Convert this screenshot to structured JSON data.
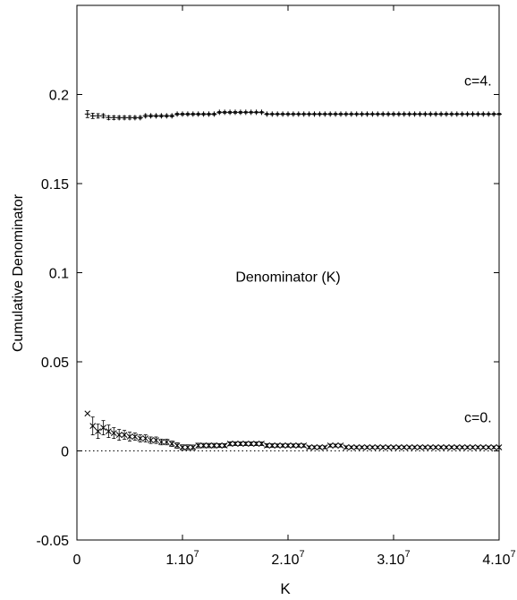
{
  "chart_data": {
    "type": "scatter",
    "title": "Denominator (K)",
    "xlabel": "K",
    "ylabel": "Cumulative Denominator",
    "xlim": [
      0,
      40000000
    ],
    "ylim": [
      -0.05,
      0.25
    ],
    "x_ticks": [
      {
        "value": 0,
        "base": "0",
        "exp": ""
      },
      {
        "value": 10000000,
        "base": "1.10",
        "exp": "7"
      },
      {
        "value": 20000000,
        "base": "2.10",
        "exp": "7"
      },
      {
        "value": 30000000,
        "base": "3.10",
        "exp": "7"
      },
      {
        "value": 40000000,
        "base": "4.10",
        "exp": "7"
      }
    ],
    "y_ticks": [
      {
        "value": -0.05,
        "label": "-0.05"
      },
      {
        "value": 0,
        "label": "0"
      },
      {
        "value": 0.05,
        "label": "0.05"
      },
      {
        "value": 0.1,
        "label": "0.1"
      },
      {
        "value": 0.15,
        "label": "0.15"
      },
      {
        "value": 0.2,
        "label": "0.2"
      }
    ],
    "reference_line": {
      "y": 0,
      "style": "dotted"
    },
    "grid": false,
    "series": [
      {
        "name": "c=4.",
        "marker": "+",
        "x": [
          1000000,
          1500000,
          2000000,
          2500000,
          3000000,
          3500000,
          4000000,
          4500000,
          5000000,
          5500000,
          6000000,
          6500000,
          7000000,
          7500000,
          8000000,
          8500000,
          9000000,
          9500000,
          10000000,
          10500000,
          11000000,
          11500000,
          12000000,
          12500000,
          13000000,
          13500000,
          14000000,
          14500000,
          15000000,
          15500000,
          16000000,
          16500000,
          17000000,
          17500000,
          18000000,
          18500000,
          19000000,
          19500000,
          20000000,
          20500000,
          21000000,
          21500000,
          22000000,
          22500000,
          23000000,
          23500000,
          24000000,
          24500000,
          25000000,
          25500000,
          26000000,
          26500000,
          27000000,
          27500000,
          28000000,
          28500000,
          29000000,
          29500000,
          30000000,
          30500000,
          31000000,
          31500000,
          32000000,
          32500000,
          33000000,
          33500000,
          34000000,
          34500000,
          35000000,
          35500000,
          36000000,
          36500000,
          37000000,
          37500000,
          38000000,
          38500000,
          39000000,
          39500000,
          40000000
        ],
        "y": [
          0.189,
          0.188,
          0.188,
          0.188,
          0.187,
          0.187,
          0.187,
          0.187,
          0.187,
          0.187,
          0.187,
          0.188,
          0.188,
          0.188,
          0.188,
          0.188,
          0.188,
          0.189,
          0.189,
          0.189,
          0.189,
          0.189,
          0.189,
          0.189,
          0.189,
          0.19,
          0.19,
          0.19,
          0.19,
          0.19,
          0.19,
          0.19,
          0.19,
          0.19,
          0.189,
          0.189,
          0.189,
          0.189,
          0.189,
          0.189,
          0.189,
          0.189,
          0.189,
          0.189,
          0.189,
          0.189,
          0.189,
          0.189,
          0.189,
          0.189,
          0.189,
          0.189,
          0.189,
          0.189,
          0.189,
          0.189,
          0.189,
          0.189,
          0.189,
          0.189,
          0.189,
          0.189,
          0.189,
          0.189,
          0.189,
          0.189,
          0.189,
          0.189,
          0.189,
          0.189,
          0.189,
          0.189,
          0.189,
          0.189,
          0.189,
          0.189,
          0.189,
          0.189,
          0.189
        ],
        "err": [
          0.002,
          0.0015,
          0.0012,
          0.001,
          0.001,
          0.001,
          0.0008,
          0.0008,
          0.0008,
          0.0007,
          0.0007,
          0.0007,
          0.0006,
          0.0006,
          0.0006,
          0.0006,
          0.0006,
          0.0005,
          0.0005,
          0.0005,
          0.0005,
          0.0005,
          0.0005,
          0.0005,
          0.0005,
          0.0005,
          0.0005,
          0.0005,
          0.0005,
          0.0005,
          0.0004,
          0.0004,
          0.0004,
          0.0004,
          0.0004,
          0.0004,
          0.0004,
          0.0004,
          0.0004,
          0.0004,
          0.0004,
          0.0004,
          0.0004,
          0.0004,
          0.0004,
          0.0004,
          0.0004,
          0.0004,
          0.0004,
          0.0004,
          0.0004,
          0.0004,
          0.0004,
          0.0004,
          0.0004,
          0.0004,
          0.0004,
          0.0004,
          0.0004,
          0.0004,
          0.0004,
          0.0004,
          0.0004,
          0.0004,
          0.0004,
          0.0004,
          0.0004,
          0.0004,
          0.0004,
          0.0004,
          0.0004,
          0.0004,
          0.0004,
          0.0004,
          0.0004,
          0.0004,
          0.0004,
          0.0004,
          0.0004
        ]
      },
      {
        "name": "c=0.",
        "marker": "x",
        "x": [
          1000000,
          1500000,
          2000000,
          2500000,
          3000000,
          3500000,
          4000000,
          4500000,
          5000000,
          5500000,
          6000000,
          6500000,
          7000000,
          7500000,
          8000000,
          8500000,
          9000000,
          9500000,
          10000000,
          10500000,
          11000000,
          11500000,
          12000000,
          12500000,
          13000000,
          13500000,
          14000000,
          14500000,
          15000000,
          15500000,
          16000000,
          16500000,
          17000000,
          17500000,
          18000000,
          18500000,
          19000000,
          19500000,
          20000000,
          20500000,
          21000000,
          21500000,
          22000000,
          22500000,
          23000000,
          23500000,
          24000000,
          24500000,
          25000000,
          25500000,
          26000000,
          26500000,
          27000000,
          27500000,
          28000000,
          28500000,
          29000000,
          29500000,
          30000000,
          30500000,
          31000000,
          31500000,
          32000000,
          32500000,
          33000000,
          33500000,
          34000000,
          34500000,
          35000000,
          35500000,
          36000000,
          36500000,
          37000000,
          37500000,
          38000000,
          38500000,
          39000000,
          39500000,
          40000000
        ],
        "y": [
          0.021,
          0.014,
          0.011,
          0.013,
          0.011,
          0.01,
          0.009,
          0.009,
          0.008,
          0.008,
          0.007,
          0.007,
          0.006,
          0.006,
          0.005,
          0.005,
          0.004,
          0.003,
          0.002,
          0.002,
          0.002,
          0.003,
          0.003,
          0.003,
          0.003,
          0.003,
          0.003,
          0.004,
          0.004,
          0.004,
          0.004,
          0.004,
          0.004,
          0.004,
          0.003,
          0.003,
          0.003,
          0.003,
          0.003,
          0.003,
          0.003,
          0.003,
          0.002,
          0.002,
          0.002,
          0.002,
          0.003,
          0.003,
          0.003,
          0.002,
          0.002,
          0.002,
          0.002,
          0.002,
          0.002,
          0.002,
          0.002,
          0.002,
          0.002,
          0.002,
          0.002,
          0.002,
          0.002,
          0.002,
          0.002,
          0.002,
          0.002,
          0.002,
          0.002,
          0.002,
          0.002,
          0.002,
          0.002,
          0.002,
          0.002,
          0.002,
          0.002,
          0.002,
          0.002
        ],
        "err": [
          0.0,
          0.005,
          0.004,
          0.004,
          0.0035,
          0.003,
          0.003,
          0.0025,
          0.0025,
          0.002,
          0.002,
          0.002,
          0.0018,
          0.0018,
          0.0016,
          0.0016,
          0.0015,
          0.0015,
          0.0014,
          0.0014,
          0.0013,
          0.0013,
          0.0012,
          0.0012,
          0.0012,
          0.0011,
          0.0011,
          0.0011,
          0.001,
          0.001,
          0.001,
          0.001,
          0.001,
          0.001,
          0.001,
          0.001,
          0.0009,
          0.0009,
          0.0009,
          0.0009,
          0.0009,
          0.0009,
          0.0008,
          0.0008,
          0.0008,
          0.0008,
          0.0008,
          0.0008,
          0.0008,
          0.0008,
          0.0007,
          0.0007,
          0.0007,
          0.0007,
          0.0007,
          0.0007,
          0.0007,
          0.0007,
          0.0007,
          0.0007,
          0.0007,
          0.0007,
          0.0007,
          0.0007,
          0.0007,
          0.0007,
          0.0007,
          0.0007,
          0.0007,
          0.0007,
          0.0007,
          0.0007,
          0.0007,
          0.0007,
          0.0007,
          0.0007,
          0.0007,
          0.0007,
          0.0007
        ]
      }
    ],
    "annotations": [
      {
        "text": "c=4.",
        "x": 38000000,
        "y": 0.205
      },
      {
        "text": "c=0.",
        "x": 38000000,
        "y": 0.016
      },
      {
        "text": "Denominator (K)",
        "x": 20000000,
        "y": 0.095
      }
    ]
  }
}
